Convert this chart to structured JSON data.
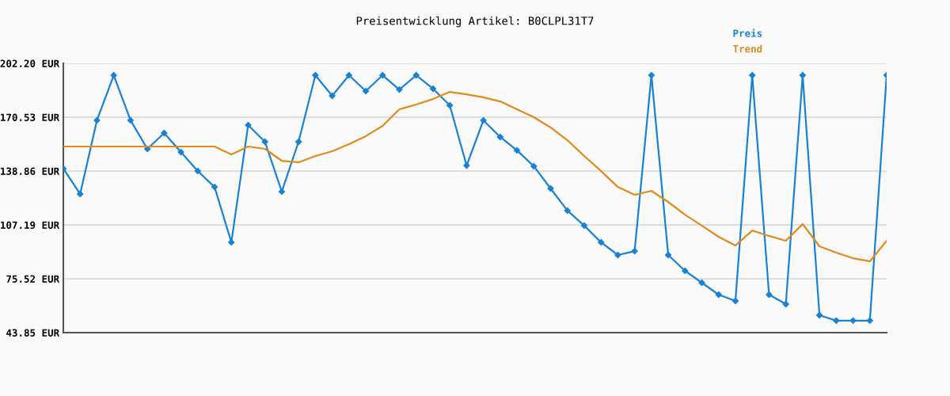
{
  "chart_data": {
    "type": "line",
    "title": "Preisentwicklung Artikel: B0CLPL31T7",
    "categories": [
      null,
      null,
      null,
      null,
      null,
      null,
      null,
      null,
      null,
      null,
      null,
      null,
      null,
      null,
      null,
      null,
      null,
      null,
      null,
      null,
      null,
      null,
      null,
      null,
      null,
      null,
      null,
      null,
      null,
      null,
      null,
      null,
      null,
      null,
      null,
      null,
      null,
      null,
      null,
      null,
      null,
      null,
      null,
      null,
      null,
      null,
      null,
      null,
      null,
      null
    ],
    "series": [
      {
        "name": "Preis",
        "color": "#1a82d0",
        "marker": "diamond",
        "values": [
          140.3,
          125.4,
          168.7,
          195.2,
          168.7,
          151.9,
          161.2,
          150.0,
          138.9,
          129.5,
          97.0,
          165.9,
          156.1,
          126.8,
          156.1,
          195.2,
          183.1,
          195.2,
          185.9,
          195.2,
          186.8,
          195.2,
          187.3,
          177.5,
          142.1,
          168.7,
          158.9,
          151.0,
          141.7,
          128.6,
          115.6,
          106.8,
          97.0,
          89.5,
          91.8,
          195.2,
          89.5,
          80.2,
          73.2,
          66.2,
          62.5,
          195.2,
          66.2,
          60.6,
          195.2,
          54.1,
          50.9,
          50.9,
          50.9,
          195.2
        ]
      },
      {
        "name": "Trend",
        "color": "#e08a1e",
        "marker": "none",
        "values": [
          153.3,
          153.3,
          153.3,
          153.3,
          153.3,
          153.3,
          153.3,
          153.3,
          153.3,
          153.3,
          148.6,
          153.3,
          151.9,
          144.9,
          144.0,
          147.7,
          150.5,
          154.7,
          159.4,
          165.4,
          175.2,
          178.0,
          181.2,
          185.4,
          184.0,
          182.2,
          179.8,
          175.2,
          170.5,
          164.5,
          157.0,
          147.7,
          138.9,
          129.5,
          124.9,
          127.2,
          120.7,
          113.2,
          106.8,
          100.2,
          95.1,
          103.9,
          100.7,
          97.9,
          107.7,
          94.6,
          90.9,
          87.6,
          85.8,
          97.9
        ]
      }
    ],
    "ylim": [
      43.85,
      202.2
    ],
    "yticks": [
      {
        "value": 43.85,
        "label": "43.85 EUR"
      },
      {
        "value": 75.52,
        "label": "75.52 EUR"
      },
      {
        "value": 107.19,
        "label": "107.19 EUR"
      },
      {
        "value": 138.86,
        "label": "138.86 EUR"
      },
      {
        "value": 170.53,
        "label": "170.53 EUR"
      },
      {
        "value": 202.2,
        "label": "202.20 EUR"
      }
    ],
    "grid": "y",
    "legend": "top right",
    "tick_labels": "y",
    "line_style": "solid"
  }
}
